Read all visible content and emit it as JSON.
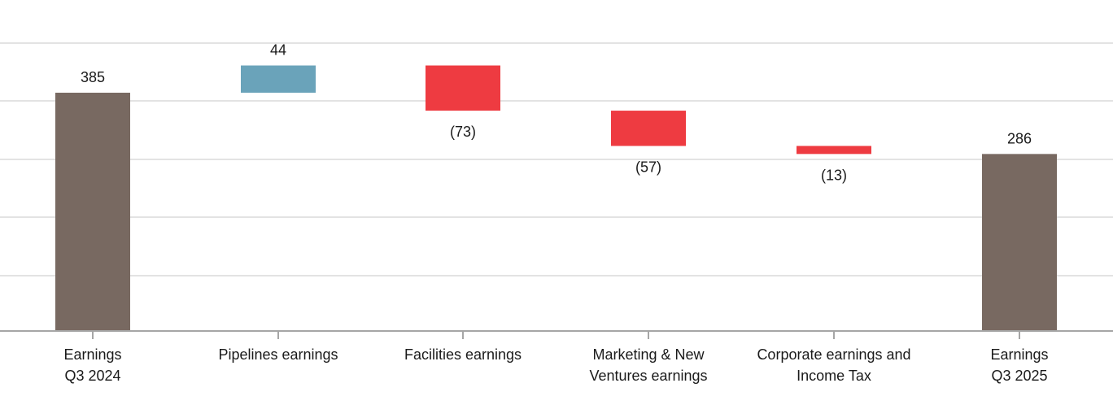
{
  "chart_data": {
    "type": "waterfall",
    "categories": [
      [
        "Earnings",
        "Q3 2024"
      ],
      [
        "Pipelines earnings"
      ],
      [
        "Facilities earnings"
      ],
      [
        "Marketing & New",
        "Ventures earnings"
      ],
      [
        "Corporate earnings and",
        "Income Tax"
      ],
      [
        "Earnings",
        "Q3 2025"
      ]
    ],
    "steps": [
      {
        "kind": "total",
        "value": 385,
        "label": "385"
      },
      {
        "kind": "delta",
        "value": 44,
        "label": "44"
      },
      {
        "kind": "delta",
        "value": -73,
        "label": "(73)"
      },
      {
        "kind": "delta",
        "value": -57,
        "label": "(57)"
      },
      {
        "kind": "delta",
        "value": -13,
        "label": "(13)"
      },
      {
        "kind": "total",
        "value": 286,
        "label": "286"
      }
    ],
    "ylim": [
      0,
      500
    ],
    "grid": true,
    "colors": {
      "total": "#786961",
      "increase": "#6aa3ba",
      "decrease": "#ee3b41",
      "grid": "#e3e3e3",
      "axis": "#a6a6a6"
    }
  }
}
